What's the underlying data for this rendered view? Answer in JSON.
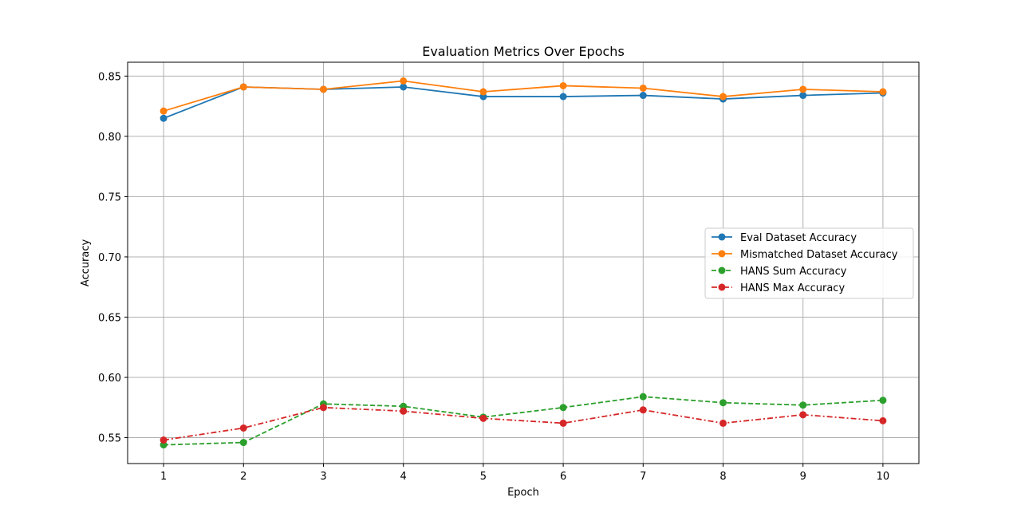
{
  "chart_data": {
    "type": "line",
    "title": "Evaluation Metrics Over Epochs",
    "xlabel": "Epoch",
    "ylabel": "Accuracy",
    "x": [
      1,
      2,
      3,
      4,
      5,
      6,
      7,
      8,
      9,
      10
    ],
    "xticks": [
      "1",
      "2",
      "3",
      "4",
      "5",
      "6",
      "7",
      "8",
      "9",
      "10"
    ],
    "yticks": [
      "0.55",
      "0.60",
      "0.65",
      "0.70",
      "0.75",
      "0.80",
      "0.85"
    ],
    "xlim": [
      0.55,
      10.45
    ],
    "ylim": [
      0.5285,
      0.8615
    ],
    "grid": true,
    "legend_position": "center-right",
    "series": [
      {
        "name": "Eval Dataset Accuracy",
        "color": "#1f77b4",
        "linestyle": "solid",
        "marker": "circle",
        "values": [
          0.815,
          0.841,
          0.839,
          0.841,
          0.833,
          0.833,
          0.834,
          0.831,
          0.834,
          0.836
        ]
      },
      {
        "name": "Mismatched Dataset Accuracy",
        "color": "#ff7f0e",
        "linestyle": "solid",
        "marker": "circle",
        "values": [
          0.821,
          0.841,
          0.839,
          0.846,
          0.837,
          0.842,
          0.84,
          0.833,
          0.839,
          0.837
        ]
      },
      {
        "name": "HANS Sum Accuracy",
        "color": "#2ca02c",
        "linestyle": "dashed",
        "marker": "circle",
        "values": [
          0.544,
          0.546,
          0.578,
          0.576,
          0.567,
          0.575,
          0.584,
          0.579,
          0.577,
          0.581
        ]
      },
      {
        "name": "HANS Max Accuracy",
        "color": "#d62728",
        "linestyle": "dashdot",
        "marker": "circle",
        "values": [
          0.548,
          0.558,
          0.575,
          0.572,
          0.566,
          0.562,
          0.573,
          0.562,
          0.569,
          0.564
        ]
      }
    ]
  }
}
